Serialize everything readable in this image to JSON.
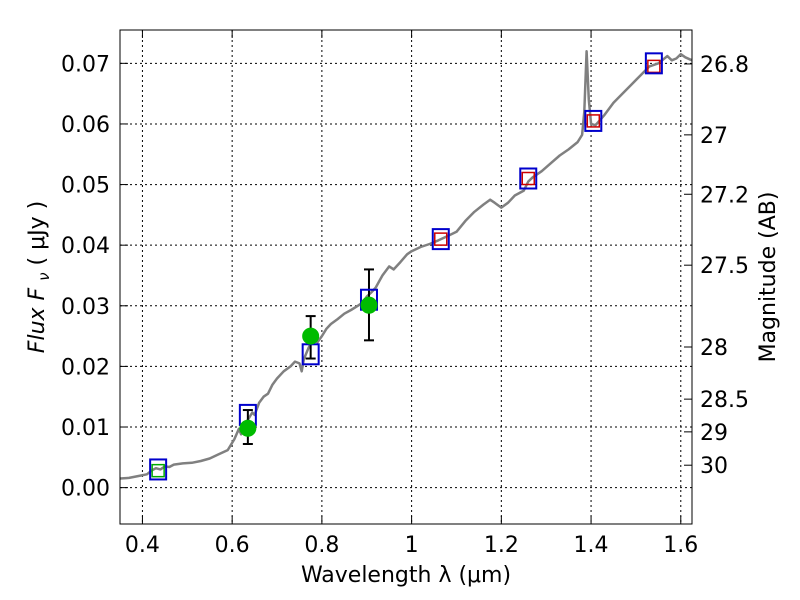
{
  "chart_data": {
    "type": "scatter",
    "xlabel": "Wavelength  λ (μm)",
    "ylabel": "Flux  F",
    "ylabel_sub": "ν",
    "ylabel_unit": "( μJy )",
    "y2label": "Magnitude (AB)",
    "xlim": [
      0.35,
      1.625
    ],
    "ylim": [
      -0.006,
      0.0755
    ],
    "grid": true,
    "x_ticks": [
      0.4,
      0.6,
      0.8,
      1.0,
      1.2,
      1.4,
      1.6
    ],
    "x_tick_labels": [
      "0.4",
      "0.6",
      "0.8",
      "1",
      "1.2",
      "1.4",
      "1.6"
    ],
    "y_ticks": [
      0.0,
      0.01,
      0.02,
      0.03,
      0.04,
      0.05,
      0.06,
      0.07
    ],
    "y_tick_labels": [
      "0.00",
      "0.01",
      "0.02",
      "0.03",
      "0.04",
      "0.05",
      "0.06",
      "0.07"
    ],
    "y2_ticks": [
      {
        "label": "26.8",
        "flux": 0.0699
      },
      {
        "label": "27",
        "flux": 0.0582
      },
      {
        "label": "27.2",
        "flux": 0.0484
      },
      {
        "label": "27.5",
        "flux": 0.0367
      },
      {
        "label": "28",
        "flux": 0.0232
      },
      {
        "label": "28.5",
        "flux": 0.0146
      },
      {
        "label": "29",
        "flux": 0.0092
      },
      {
        "label": "30",
        "flux": 0.0037
      }
    ],
    "series": [
      {
        "kind": "model-spectrum",
        "color": "#808080",
        "points": [
          [
            0.35,
            0.0015
          ],
          [
            0.37,
            0.0016
          ],
          [
            0.39,
            0.0019
          ],
          [
            0.41,
            0.0022
          ],
          [
            0.42,
            0.0028
          ],
          [
            0.43,
            0.0032
          ],
          [
            0.44,
            0.003
          ],
          [
            0.45,
            0.0035
          ],
          [
            0.46,
            0.0034
          ],
          [
            0.47,
            0.0038
          ],
          [
            0.49,
            0.004
          ],
          [
            0.51,
            0.0041
          ],
          [
            0.53,
            0.0044
          ],
          [
            0.55,
            0.0048
          ],
          [
            0.57,
            0.0055
          ],
          [
            0.59,
            0.0062
          ],
          [
            0.605,
            0.008
          ],
          [
            0.615,
            0.0097
          ],
          [
            0.62,
            0.0088
          ],
          [
            0.625,
            0.0105
          ],
          [
            0.63,
            0.0097
          ],
          [
            0.635,
            0.0112
          ],
          [
            0.64,
            0.0118
          ],
          [
            0.645,
            0.0124
          ],
          [
            0.65,
            0.012
          ],
          [
            0.66,
            0.014
          ],
          [
            0.67,
            0.015
          ],
          [
            0.68,
            0.0155
          ],
          [
            0.69,
            0.017
          ],
          [
            0.7,
            0.018
          ],
          [
            0.715,
            0.0192
          ],
          [
            0.73,
            0.02
          ],
          [
            0.74,
            0.0208
          ],
          [
            0.75,
            0.0205
          ],
          [
            0.755,
            0.0192
          ],
          [
            0.76,
            0.0212
          ],
          [
            0.77,
            0.023
          ],
          [
            0.78,
            0.0245
          ],
          [
            0.79,
            0.024
          ],
          [
            0.8,
            0.025
          ],
          [
            0.81,
            0.0262
          ],
          [
            0.82,
            0.027
          ],
          [
            0.835,
            0.0278
          ],
          [
            0.85,
            0.0287
          ],
          [
            0.865,
            0.0293
          ],
          [
            0.88,
            0.03
          ],
          [
            0.89,
            0.0305
          ],
          [
            0.9,
            0.0315
          ],
          [
            0.91,
            0.0322
          ],
          [
            0.92,
            0.033
          ],
          [
            0.935,
            0.035
          ],
          [
            0.95,
            0.0365
          ],
          [
            0.96,
            0.036
          ],
          [
            0.975,
            0.0372
          ],
          [
            0.99,
            0.0385
          ],
          [
            1.0,
            0.039
          ],
          [
            1.02,
            0.0397
          ],
          [
            1.04,
            0.0402
          ],
          [
            1.06,
            0.0408
          ],
          [
            1.08,
            0.0415
          ],
          [
            1.1,
            0.0422
          ],
          [
            1.12,
            0.044
          ],
          [
            1.14,
            0.0455
          ],
          [
            1.16,
            0.0467
          ],
          [
            1.175,
            0.0475
          ],
          [
            1.185,
            0.047
          ],
          [
            1.2,
            0.0462
          ],
          [
            1.215,
            0.047
          ],
          [
            1.23,
            0.0482
          ],
          [
            1.25,
            0.049
          ],
          [
            1.26,
            0.0505
          ],
          [
            1.27,
            0.0512
          ],
          [
            1.29,
            0.0522
          ],
          [
            1.31,
            0.0535
          ],
          [
            1.33,
            0.0548
          ],
          [
            1.35,
            0.0558
          ],
          [
            1.37,
            0.057
          ],
          [
            1.38,
            0.0582
          ],
          [
            1.385,
            0.062
          ],
          [
            1.39,
            0.072
          ],
          [
            1.395,
            0.064
          ],
          [
            1.4,
            0.06
          ],
          [
            1.41,
            0.0598
          ],
          [
            1.43,
            0.0615
          ],
          [
            1.45,
            0.0635
          ],
          [
            1.47,
            0.065
          ],
          [
            1.49,
            0.0665
          ],
          [
            1.51,
            0.068
          ],
          [
            1.53,
            0.0695
          ],
          [
            1.55,
            0.07
          ],
          [
            1.57,
            0.0712
          ],
          [
            1.58,
            0.0705
          ],
          [
            1.59,
            0.0708
          ],
          [
            1.6,
            0.0715
          ],
          [
            1.61,
            0.071
          ],
          [
            1.625,
            0.0705
          ]
        ]
      },
      {
        "kind": "model-photometry",
        "marker": "open-square",
        "color": "#0000cc",
        "points": [
          [
            0.435,
            0.003
          ],
          [
            0.635,
            0.012
          ],
          [
            0.775,
            0.022
          ],
          [
            0.905,
            0.031
          ],
          [
            1.065,
            0.041
          ],
          [
            1.26,
            0.051
          ],
          [
            1.405,
            0.0605
          ],
          [
            1.54,
            0.07
          ]
        ]
      },
      {
        "kind": "inner-markers",
        "marker": "open-square",
        "colors": [
          "#00aa00",
          "#cc0000"
        ],
        "points": [
          [
            0.435,
            0.0028,
            "#00aa00"
          ],
          [
            1.065,
            0.041,
            "#cc0000"
          ],
          [
            1.26,
            0.051,
            "#cc0000"
          ],
          [
            1.405,
            0.0605,
            "#cc0000"
          ],
          [
            1.54,
            0.0695,
            "#cc0000"
          ]
        ]
      },
      {
        "kind": "observed",
        "marker": "filled-circle",
        "color": "#00bb00",
        "points": [
          {
            "x": 0.635,
            "y": 0.0098,
            "lo": 0.0072,
            "hi": 0.0128
          },
          {
            "x": 0.775,
            "y": 0.025,
            "lo": 0.0213,
            "hi": 0.0283
          },
          {
            "x": 0.905,
            "y": 0.0301,
            "lo": 0.0243,
            "hi": 0.036
          }
        ]
      }
    ]
  }
}
